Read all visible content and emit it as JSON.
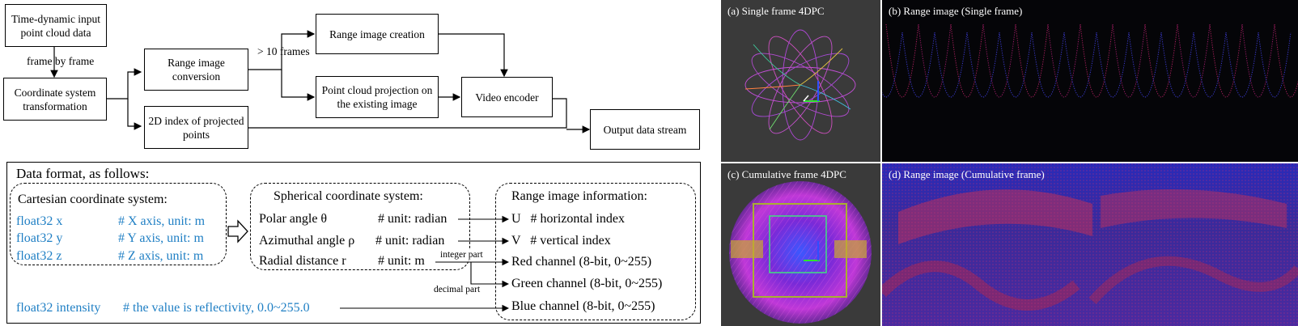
{
  "flow": {
    "input": "Time-dynamic input point cloud data",
    "frame_by_frame": "frame by frame",
    "coord_transform": "Coordinate system transformation",
    "range_conversion": "Range image conversion",
    "gt10": "> 10 frames",
    "range_creation": "Range image creation",
    "pc_projection": "Point cloud projection on the existing image",
    "index_2d": "2D index of projected points",
    "video_encoder": "Video encoder",
    "output": "Output data stream"
  },
  "format": {
    "heading": "Data format, as follows:",
    "cartesian": {
      "title": "Cartesian coordinate system:",
      "rows": [
        {
          "name": "float32 x",
          "comment": "# X axis, unit: m"
        },
        {
          "name": "float32 y",
          "comment": "# Y axis, unit: m"
        },
        {
          "name": "float32 z",
          "comment": "# Z axis, unit: m"
        }
      ]
    },
    "spherical": {
      "title": "Spherical coordinate system:",
      "rows": [
        {
          "name": "Polar angle θ",
          "comment": "# unit: radian"
        },
        {
          "name": "Azimuthal angle ρ",
          "comment": "# unit: radian"
        },
        {
          "name": "Radial distance r",
          "comment": "# unit: m"
        }
      ]
    },
    "range": {
      "title": "Range image information:",
      "rows": [
        "U   # horizontal index",
        "V   # vertical index",
        "Red channel (8-bit, 0~255)",
        "Green channel (8-bit, 0~255)",
        "Blue channel (8-bit, 0~255)"
      ]
    },
    "integer_part": "integer part",
    "decimal_part": "decimal part",
    "intensity_name": "float32 intensity",
    "intensity_comment": "# the value is reflectivity, 0.0~255.0"
  },
  "panels": {
    "a": "(a) Single frame 4DPC",
    "b": "(b) Range image (Single frame)",
    "c": "(c) Cumulative frame 4DPC",
    "d": "(d) Range image (Cumulative frame)"
  },
  "colors": {
    "blue_text": "#1f7fc4",
    "panel_bg": "#3a3a3a",
    "range_bg": "#050508"
  }
}
